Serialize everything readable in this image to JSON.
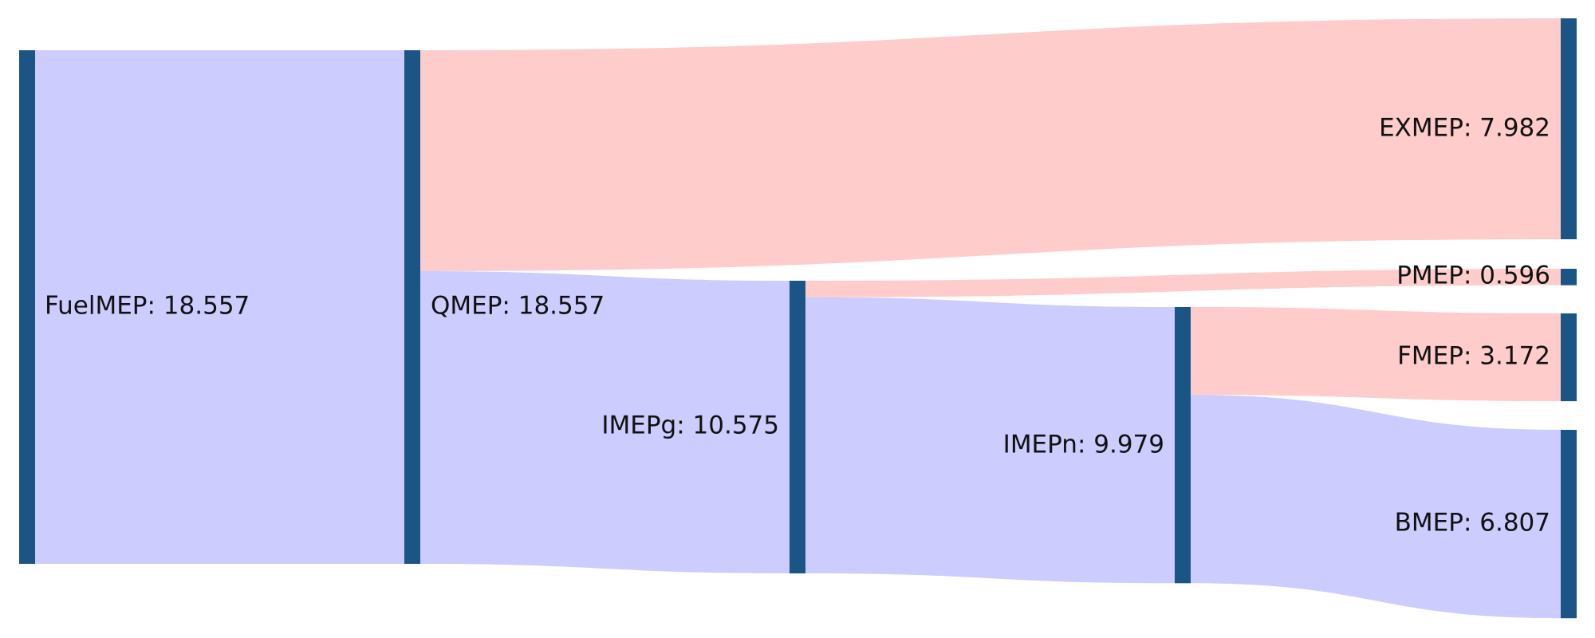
{
  "diagram": {
    "type": "sankey",
    "colors": {
      "node": "#1a5586",
      "flow_useful": "#ccccff",
      "flow_loss": "#ffcccc"
    },
    "nodes": [
      {
        "id": "fuel",
        "label": "FuelMEP: 18.557"
      },
      {
        "id": "q",
        "label": "QMEP: 18.557"
      },
      {
        "id": "imepg",
        "label": "IMEPg: 10.575"
      },
      {
        "id": "imepn",
        "label": "IMEPn: 9.979"
      },
      {
        "id": "exmep",
        "label": "EXMEP: 7.982"
      },
      {
        "id": "pmep",
        "label": "PMEP: 0.596"
      },
      {
        "id": "fmep",
        "label": "FMEP: 3.172"
      },
      {
        "id": "bmep",
        "label": "BMEP: 6.807"
      }
    ],
    "links": [
      {
        "source": "fuel",
        "target": "q",
        "value": 18.557,
        "kind": "useful"
      },
      {
        "source": "q",
        "target": "exmep",
        "value": 7.982,
        "kind": "loss"
      },
      {
        "source": "q",
        "target": "imepg",
        "value": 10.575,
        "kind": "useful"
      },
      {
        "source": "imepg",
        "target": "pmep",
        "value": 0.596,
        "kind": "loss"
      },
      {
        "source": "imepg",
        "target": "imepn",
        "value": 9.979,
        "kind": "useful"
      },
      {
        "source": "imepn",
        "target": "fmep",
        "value": 3.172,
        "kind": "loss"
      },
      {
        "source": "imepn",
        "target": "bmep",
        "value": 6.807,
        "kind": "useful"
      }
    ]
  }
}
